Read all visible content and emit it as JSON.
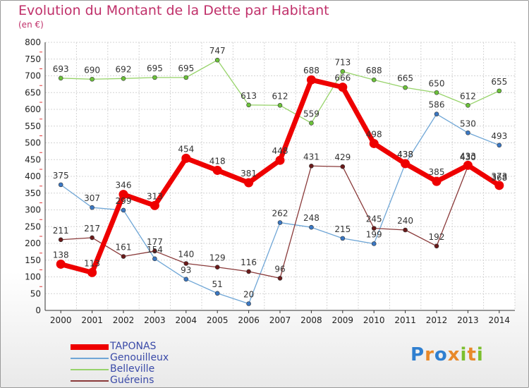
{
  "title": "Evolution du Montant de la Dette par Habitant",
  "unit_label": "(en €)",
  "logo": {
    "letters": [
      {
        "ch": "P",
        "color": "#2f7fd0"
      },
      {
        "ch": "r",
        "color": "#e8892a"
      },
      {
        "ch": "o",
        "color": "#2f7fd0"
      },
      {
        "ch": "x",
        "color": "#e8892a"
      },
      {
        "ch": "i",
        "color": "#7cbf2e"
      },
      {
        "ch": "t",
        "color": "#e8892a"
      },
      {
        "ch": "i",
        "color": "#7cbf2e"
      }
    ]
  },
  "chart_data": {
    "type": "line",
    "title": "Evolution du Montant de la Dette par Habitant",
    "ylabel": "(en €)",
    "xlabel": "",
    "x": [
      "2000",
      "2001",
      "2002",
      "2003",
      "2004",
      "2005",
      "2006",
      "2007",
      "2008",
      "2009",
      "2010",
      "2011",
      "2012",
      "2013",
      "2014"
    ],
    "ylim": [
      0,
      800
    ],
    "yticks": [
      0,
      50,
      100,
      150,
      200,
      250,
      300,
      350,
      400,
      450,
      500,
      550,
      600,
      650,
      700,
      750,
      800
    ],
    "grid": true,
    "legend_position": "bottom-left",
    "series": [
      {
        "name": "TAPONAS",
        "color": "#ee0000",
        "marker": "#ee0000",
        "values": [
          138,
          113,
          346,
          313,
          454,
          418,
          381,
          448,
          688,
          666,
          498,
          438,
          385,
          433,
          373
        ]
      },
      {
        "name": "Genouilleux",
        "color": "#6fa6d6",
        "marker": "#3b78c4",
        "values": [
          375,
          307,
          299,
          154,
          93,
          51,
          20,
          262,
          248,
          215,
          199,
          438,
          586,
          530,
          493
        ]
      },
      {
        "name": "Belleville",
        "color": "#97d36a",
        "marker": "#6cc23a",
        "values": [
          693,
          690,
          692,
          695,
          695,
          747,
          613,
          612,
          559,
          713,
          688,
          665,
          650,
          612,
          655
        ]
      },
      {
        "name": "Guéreins",
        "color": "#8a3a3a",
        "marker": "#6b1a1a",
        "values": [
          211,
          217,
          161,
          177,
          140,
          129,
          116,
          96,
          431,
          429,
          245,
          240,
          192,
          430,
          368
        ]
      }
    ]
  }
}
